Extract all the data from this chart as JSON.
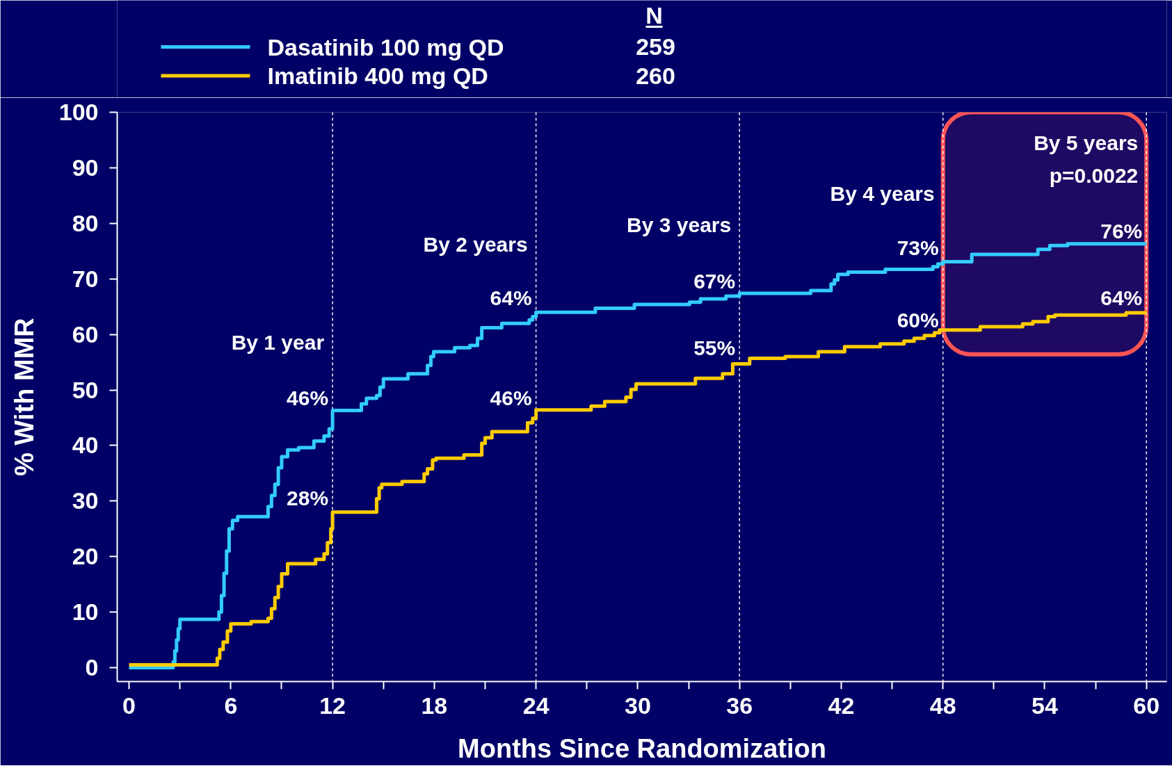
{
  "chart_data": {
    "type": "step",
    "xlabel": "Months Since Randomization",
    "ylabel": "% With MMR",
    "legend_title": "N",
    "legend": "top left",
    "line_style": "solid",
    "xlim": [
      -0.7,
      61.2
    ],
    "ylim": [
      -2.5,
      100
    ],
    "xticks": [
      0,
      {
        "value": 3,
        "label": null
      },
      6,
      {
        "value": 9,
        "label": null
      },
      12,
      {
        "value": 15,
        "label": null
      },
      18,
      {
        "value": 21,
        "label": null
      },
      24,
      {
        "value": 27,
        "label": null
      },
      30,
      {
        "value": 33,
        "label": null
      },
      36,
      {
        "value": 39,
        "label": null
      },
      42,
      {
        "value": 45,
        "label": null
      },
      48,
      {
        "value": 51,
        "label": null
      },
      54,
      {
        "value": 57,
        "label": null
      },
      60
    ],
    "yticks": [
      0,
      10,
      20,
      30,
      40,
      50,
      60,
      70,
      80,
      90,
      100
    ],
    "series": [
      {
        "name": "Dasatinib 100 mg QD",
        "color": "#33ccff",
        "x": [
          0,
          2.6,
          2.7,
          2.8,
          2.9,
          3.0,
          5.3,
          5.45,
          5.6,
          5.75,
          5.9,
          6.1,
          6.4,
          8.2,
          8.4,
          8.6,
          8.8,
          9.0,
          9.35,
          10.0,
          10.9,
          11.5,
          11.8,
          12.0,
          13.7,
          14.0,
          14.6,
          14.8,
          15.0,
          16.45,
          17.6,
          17.8,
          17.96,
          19.2,
          20.1,
          20.55,
          20.8,
          21.98,
          23.6,
          23.8,
          24.0,
          27.5,
          29.8,
          33.05,
          33.7,
          35.2,
          36.0,
          40.2,
          41.4,
          41.6,
          41.8,
          42.4,
          44.6,
          47.4,
          47.7,
          48.0,
          49.7,
          53.6,
          54.3,
          55.35,
          60
        ],
        "values": [
          0,
          1,
          3,
          5,
          7,
          8.7,
          10,
          13,
          17,
          21,
          25,
          26.5,
          27.2,
          29,
          31,
          33,
          36,
          38,
          39.2,
          39.6,
          40.8,
          41.7,
          43,
          46.3,
          47.5,
          48.5,
          49,
          50.5,
          52,
          52.9,
          54.4,
          56,
          56.9,
          57.6,
          58.0,
          59.3,
          61.2,
          62.0,
          62.6,
          63.2,
          64,
          64.7,
          65.4,
          65.8,
          66.4,
          66.9,
          67.4,
          67.9,
          69.1,
          69.8,
          70.8,
          71.2,
          71.7,
          72.2,
          72.7,
          73.1,
          74.4,
          75.3,
          76.0,
          76.3,
          76.3
        ]
      },
      {
        "name": "Imatinib 400 mg QD",
        "color": "#ffcc00",
        "x": [
          0,
          5.2,
          5.35,
          5.55,
          5.8,
          6.0,
          7.2,
          8.2,
          8.4,
          8.6,
          8.8,
          9.0,
          9.35,
          11.0,
          11.5,
          11.7,
          11.9,
          12.0,
          14.6,
          14.75,
          14.9,
          16.1,
          17.4,
          17.6,
          17.9,
          18.1,
          19.75,
          20.8,
          21.0,
          21.4,
          23.5,
          23.8,
          24.0,
          27.25,
          28.05,
          29.3,
          29.6,
          29.9,
          33.4,
          35.0,
          35.6,
          36.6,
          38.7,
          40.65,
          42.2,
          44.3,
          45.7,
          46.3,
          46.9,
          47.5,
          47.8,
          50.2,
          52.7,
          53.3,
          54.2,
          54.6,
          58.8,
          60
        ],
        "values": [
          0.5,
          1.7,
          3.3,
          4.6,
          6.6,
          7.9,
          8.3,
          8.9,
          10.6,
          12.6,
          14.6,
          16.9,
          18.7,
          19.5,
          20.5,
          22.5,
          25,
          28,
          30.4,
          32.4,
          33.0,
          33.5,
          34.9,
          35.8,
          37.4,
          37.7,
          38.3,
          40.4,
          41.4,
          42.5,
          44.1,
          44.9,
          46.4,
          47.1,
          47.9,
          48.7,
          50.1,
          51.1,
          52.1,
          52.9,
          54.7,
          55.7,
          56.0,
          56.9,
          57.8,
          58.3,
          58.8,
          59.3,
          59.8,
          60.3,
          60.8,
          61.4,
          61.9,
          62.3,
          63.2,
          63.5,
          63.9,
          63.9
        ]
      }
    ],
    "ref_lines": [
      {
        "axis": "x",
        "value": 12,
        "label": "By 1 year",
        "color": "#ffffff",
        "line_style": "dashed"
      },
      {
        "axis": "x",
        "value": 24,
        "label": "By 2 years",
        "color": "#ffffff",
        "line_style": "dashed"
      },
      {
        "axis": "x",
        "value": 36,
        "label": "By 3 years",
        "color": "#ffffff",
        "line_style": "dashed"
      },
      {
        "axis": "x",
        "value": 48,
        "label": "By 4 years",
        "color": "#ffffff",
        "line_style": "dashed"
      },
      {
        "axis": "x",
        "value": 60,
        "label": "By 5 years",
        "color": "#ffffff",
        "line_style": "dashed"
      }
    ],
    "bands": [
      {
        "axis": "x",
        "from": 48,
        "to": 60,
        "color": "#ff5555"
      }
    ],
    "annotations": [
      {
        "text": "46%",
        "x": 12,
        "y": 46
      },
      {
        "text": "28%",
        "x": 12,
        "y": 28
      },
      {
        "text": "64%",
        "x": 24,
        "y": 64
      },
      {
        "text": "46%",
        "x": 24,
        "y": 46
      },
      {
        "text": "67%",
        "x": 36,
        "y": 67
      },
      {
        "text": "55%",
        "x": 36,
        "y": 55
      },
      {
        "text": "73%",
        "x": 48,
        "y": 73
      },
      {
        "text": "60%",
        "x": 48,
        "y": 60
      },
      {
        "text": "76%",
        "x": 60,
        "y": 76
      },
      {
        "text": "64%",
        "x": 60,
        "y": 64
      },
      "259",
      "260",
      "p=0.0022"
    ]
  }
}
